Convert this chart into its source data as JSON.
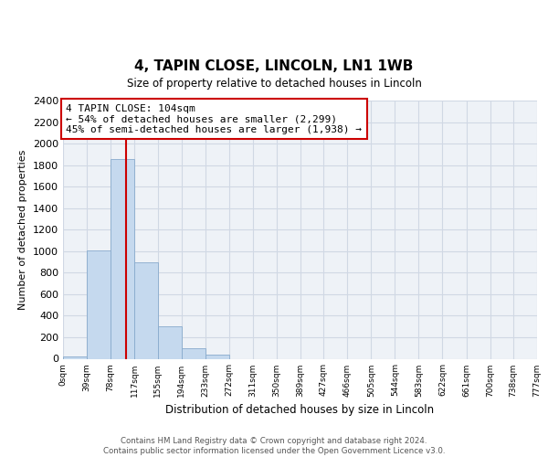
{
  "title": "4, TAPIN CLOSE, LINCOLN, LN1 1WB",
  "subtitle": "Size of property relative to detached houses in Lincoln",
  "xlabel": "Distribution of detached houses by size in Lincoln",
  "ylabel": "Number of detached properties",
  "bar_edges": [
    0,
    39,
    78,
    117,
    155,
    194,
    233,
    272,
    311,
    350,
    389,
    427,
    466,
    505,
    544,
    583,
    622,
    661,
    700,
    738,
    777
  ],
  "bar_heights": [
    20,
    1010,
    1860,
    900,
    300,
    100,
    40,
    0,
    0,
    0,
    0,
    0,
    0,
    0,
    0,
    0,
    0,
    0,
    0,
    0
  ],
  "bar_color": "#c5d9ee",
  "bar_edgecolor": "#88aacc",
  "property_line_x": 104,
  "property_line_color": "#cc0000",
  "annotation_line1": "4 TAPIN CLOSE: 104sqm",
  "annotation_line2": "← 54% of detached houses are smaller (2,299)",
  "annotation_line3": "45% of semi-detached houses are larger (1,938) →",
  "annotation_box_color": "#ffffff",
  "annotation_box_edgecolor": "#cc0000",
  "ylim": [
    0,
    2400
  ],
  "yticks": [
    0,
    200,
    400,
    600,
    800,
    1000,
    1200,
    1400,
    1600,
    1800,
    2000,
    2200,
    2400
  ],
  "tick_labels": [
    "0sqm",
    "39sqm",
    "78sqm",
    "117sqm",
    "155sqm",
    "194sqm",
    "233sqm",
    "272sqm",
    "311sqm",
    "350sqm",
    "389sqm",
    "427sqm",
    "466sqm",
    "505sqm",
    "544sqm",
    "583sqm",
    "622sqm",
    "661sqm",
    "700sqm",
    "738sqm",
    "777sqm"
  ],
  "footer_line1": "Contains HM Land Registry data © Crown copyright and database right 2024.",
  "footer_line2": "Contains public sector information licensed under the Open Government Licence v3.0.",
  "background_color": "#ffffff",
  "grid_color": "#d0d8e4",
  "plot_bg_color": "#eef2f7"
}
